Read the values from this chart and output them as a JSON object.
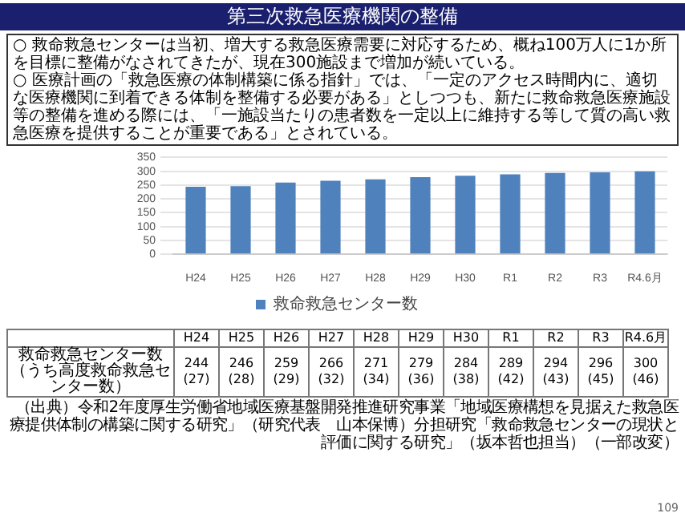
{
  "chart_data": {
    "type": "bar",
    "title": "第三次救急医療機関の整備",
    "categories": [
      "H24",
      "H25",
      "H26",
      "H27",
      "H28",
      "H29",
      "H30",
      "R1",
      "R2",
      "R3",
      "R4.6月"
    ],
    "series": [
      {
        "name": "救命救急センター数",
        "color": "#4f81bd",
        "values": [
          244,
          246,
          259,
          266,
          271,
          279,
          284,
          289,
          294,
          296,
          300
        ]
      }
    ],
    "ylim": [
      0,
      350
    ],
    "yticks": [
      0,
      50,
      100,
      150,
      200,
      250,
      300,
      350
    ],
    "grid": "y",
    "legend": "bottom",
    "data_labels": true,
    "annotations": [
      "○ 救命救急センターは当初、増大する救急医療需要に対応するため、概ね100万人に1か所を目標に整備がなされてきたが、現在300施設まで増加が続いている。",
      "○ 医療計画の「救急医療の体制構築に係る指針」では、「一定のアクセス時間内に、適切な医療機関に到着できる体制を整備する必要がある」としつつも、新たに救命救急医療施設等の整備を進める際には、「一施設当たりの患者数を一定以上に維持する等して質の高い救急医療を提供することが重要である」とされている。",
      "（うち高度救命救急センター数）",
      "（出典）令和2年度厚生労働省地域医療基盤開発推進研究事業「地域医療構想を見据えた救急医療提供体制の構築に関する研究」（研究代表　山本保博）分担研究「救命救急センターの現状と評価に関する研究」（坂本哲也担当）（一部改変）",
      "109",
      "(27)",
      "(28)",
      "(29)",
      "(32)",
      "(34)",
      "(36)",
      "(38)",
      "(42)",
      "(43)",
      "(45)",
      "(46)"
    ]
  }
}
